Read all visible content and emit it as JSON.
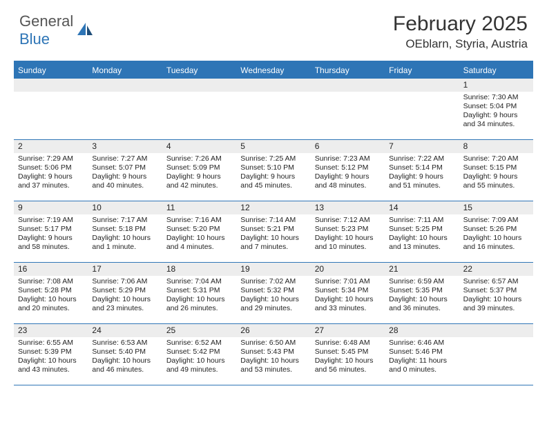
{
  "logo": {
    "general": "General",
    "blue": "Blue"
  },
  "title": "February 2025",
  "location": "OEblarn, Styria, Austria",
  "header_bg": "#2e75b6",
  "weekdays": [
    "Sunday",
    "Monday",
    "Tuesday",
    "Wednesday",
    "Thursday",
    "Friday",
    "Saturday"
  ],
  "weeks": [
    [
      {
        "n": "",
        "sr": "",
        "ss": "",
        "dl": ""
      },
      {
        "n": "",
        "sr": "",
        "ss": "",
        "dl": ""
      },
      {
        "n": "",
        "sr": "",
        "ss": "",
        "dl": ""
      },
      {
        "n": "",
        "sr": "",
        "ss": "",
        "dl": ""
      },
      {
        "n": "",
        "sr": "",
        "ss": "",
        "dl": ""
      },
      {
        "n": "",
        "sr": "",
        "ss": "",
        "dl": ""
      },
      {
        "n": "1",
        "sr": "Sunrise: 7:30 AM",
        "ss": "Sunset: 5:04 PM",
        "dl": "Daylight: 9 hours and 34 minutes."
      }
    ],
    [
      {
        "n": "2",
        "sr": "Sunrise: 7:29 AM",
        "ss": "Sunset: 5:06 PM",
        "dl": "Daylight: 9 hours and 37 minutes."
      },
      {
        "n": "3",
        "sr": "Sunrise: 7:27 AM",
        "ss": "Sunset: 5:07 PM",
        "dl": "Daylight: 9 hours and 40 minutes."
      },
      {
        "n": "4",
        "sr": "Sunrise: 7:26 AM",
        "ss": "Sunset: 5:09 PM",
        "dl": "Daylight: 9 hours and 42 minutes."
      },
      {
        "n": "5",
        "sr": "Sunrise: 7:25 AM",
        "ss": "Sunset: 5:10 PM",
        "dl": "Daylight: 9 hours and 45 minutes."
      },
      {
        "n": "6",
        "sr": "Sunrise: 7:23 AM",
        "ss": "Sunset: 5:12 PM",
        "dl": "Daylight: 9 hours and 48 minutes."
      },
      {
        "n": "7",
        "sr": "Sunrise: 7:22 AM",
        "ss": "Sunset: 5:14 PM",
        "dl": "Daylight: 9 hours and 51 minutes."
      },
      {
        "n": "8",
        "sr": "Sunrise: 7:20 AM",
        "ss": "Sunset: 5:15 PM",
        "dl": "Daylight: 9 hours and 55 minutes."
      }
    ],
    [
      {
        "n": "9",
        "sr": "Sunrise: 7:19 AM",
        "ss": "Sunset: 5:17 PM",
        "dl": "Daylight: 9 hours and 58 minutes."
      },
      {
        "n": "10",
        "sr": "Sunrise: 7:17 AM",
        "ss": "Sunset: 5:18 PM",
        "dl": "Daylight: 10 hours and 1 minute."
      },
      {
        "n": "11",
        "sr": "Sunrise: 7:16 AM",
        "ss": "Sunset: 5:20 PM",
        "dl": "Daylight: 10 hours and 4 minutes."
      },
      {
        "n": "12",
        "sr": "Sunrise: 7:14 AM",
        "ss": "Sunset: 5:21 PM",
        "dl": "Daylight: 10 hours and 7 minutes."
      },
      {
        "n": "13",
        "sr": "Sunrise: 7:12 AM",
        "ss": "Sunset: 5:23 PM",
        "dl": "Daylight: 10 hours and 10 minutes."
      },
      {
        "n": "14",
        "sr": "Sunrise: 7:11 AM",
        "ss": "Sunset: 5:25 PM",
        "dl": "Daylight: 10 hours and 13 minutes."
      },
      {
        "n": "15",
        "sr": "Sunrise: 7:09 AM",
        "ss": "Sunset: 5:26 PM",
        "dl": "Daylight: 10 hours and 16 minutes."
      }
    ],
    [
      {
        "n": "16",
        "sr": "Sunrise: 7:08 AM",
        "ss": "Sunset: 5:28 PM",
        "dl": "Daylight: 10 hours and 20 minutes."
      },
      {
        "n": "17",
        "sr": "Sunrise: 7:06 AM",
        "ss": "Sunset: 5:29 PM",
        "dl": "Daylight: 10 hours and 23 minutes."
      },
      {
        "n": "18",
        "sr": "Sunrise: 7:04 AM",
        "ss": "Sunset: 5:31 PM",
        "dl": "Daylight: 10 hours and 26 minutes."
      },
      {
        "n": "19",
        "sr": "Sunrise: 7:02 AM",
        "ss": "Sunset: 5:32 PM",
        "dl": "Daylight: 10 hours and 29 minutes."
      },
      {
        "n": "20",
        "sr": "Sunrise: 7:01 AM",
        "ss": "Sunset: 5:34 PM",
        "dl": "Daylight: 10 hours and 33 minutes."
      },
      {
        "n": "21",
        "sr": "Sunrise: 6:59 AM",
        "ss": "Sunset: 5:35 PM",
        "dl": "Daylight: 10 hours and 36 minutes."
      },
      {
        "n": "22",
        "sr": "Sunrise: 6:57 AM",
        "ss": "Sunset: 5:37 PM",
        "dl": "Daylight: 10 hours and 39 minutes."
      }
    ],
    [
      {
        "n": "23",
        "sr": "Sunrise: 6:55 AM",
        "ss": "Sunset: 5:39 PM",
        "dl": "Daylight: 10 hours and 43 minutes."
      },
      {
        "n": "24",
        "sr": "Sunrise: 6:53 AM",
        "ss": "Sunset: 5:40 PM",
        "dl": "Daylight: 10 hours and 46 minutes."
      },
      {
        "n": "25",
        "sr": "Sunrise: 6:52 AM",
        "ss": "Sunset: 5:42 PM",
        "dl": "Daylight: 10 hours and 49 minutes."
      },
      {
        "n": "26",
        "sr": "Sunrise: 6:50 AM",
        "ss": "Sunset: 5:43 PM",
        "dl": "Daylight: 10 hours and 53 minutes."
      },
      {
        "n": "27",
        "sr": "Sunrise: 6:48 AM",
        "ss": "Sunset: 5:45 PM",
        "dl": "Daylight: 10 hours and 56 minutes."
      },
      {
        "n": "28",
        "sr": "Sunrise: 6:46 AM",
        "ss": "Sunset: 5:46 PM",
        "dl": "Daylight: 11 hours and 0 minutes."
      },
      {
        "n": "",
        "sr": "",
        "ss": "",
        "dl": ""
      }
    ]
  ]
}
